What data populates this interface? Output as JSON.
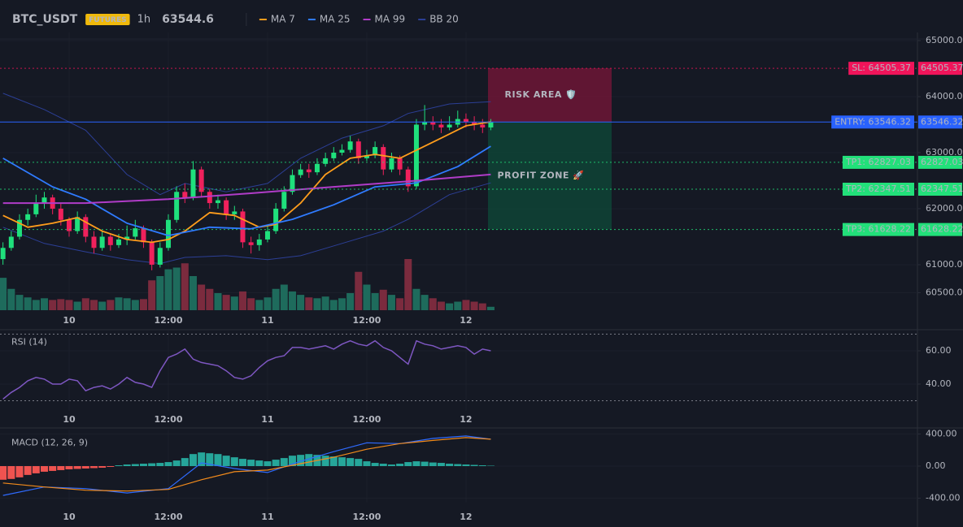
{
  "header": {
    "symbol": "BTC_USDT",
    "badge": "FUTURES",
    "interval": "1h",
    "last_price": 63544.6
  },
  "chart_data": [
    {
      "type": "candlestick",
      "xlim": [
        -0.36,
        110.6
      ],
      "xticks": [
        {
          "value": 8,
          "label": "10"
        },
        {
          "value": 20,
          "label": "12:00"
        },
        {
          "value": 32,
          "label": "11"
        },
        {
          "value": 44,
          "label": "12:00"
        },
        {
          "value": 56,
          "label": "12"
        }
      ],
      "ylim": [
        60188,
        65145
      ],
      "yticks": [
        {
          "value": 65000,
          "label": "65000.00"
        },
        {
          "value": 64000,
          "label": "64000.00"
        },
        {
          "value": 63000,
          "label": "63000.00"
        },
        {
          "value": 62000,
          "label": "62000.00"
        },
        {
          "value": 61000,
          "label": "61000.00"
        },
        {
          "value": 60500,
          "label": "60500.00"
        }
      ],
      "up_color": "#1fe07c",
      "down_color": "#f0215c",
      "volume_up_color": "#1e6b5c",
      "volume_down_color": "#7b2b3e",
      "open": [
        61100,
        61300,
        61500,
        61800,
        61900,
        62100,
        62200,
        62000,
        61800,
        61600,
        61850,
        61500,
        61300,
        61500,
        61350,
        61450,
        61500,
        61650,
        61400,
        61000,
        61300,
        61800,
        62300,
        62200,
        62700,
        62300,
        62100,
        62150,
        61900,
        61950,
        61400,
        61350,
        61450,
        61600,
        62000,
        62300,
        62600,
        62700,
        62650,
        62800,
        62900,
        63000,
        63050,
        63200,
        62900,
        62950,
        63100,
        62700,
        62900,
        62700,
        62400,
        63500,
        63550,
        63500,
        63450,
        63500,
        63600,
        63550,
        63500,
        63450
      ],
      "high": [
        61400,
        61600,
        61900,
        62000,
        62250,
        62300,
        62250,
        62100,
        61850,
        61950,
        61900,
        61600,
        61600,
        61550,
        61550,
        61700,
        61800,
        61700,
        61450,
        61400,
        61900,
        62400,
        62450,
        62850,
        62750,
        62350,
        62250,
        62200,
        62050,
        62000,
        61500,
        61550,
        61700,
        62100,
        62400,
        62700,
        62800,
        62800,
        62900,
        63000,
        63100,
        63150,
        63300,
        63250,
        63050,
        63200,
        63150,
        63000,
        62950,
        62750,
        63600,
        63850,
        63650,
        63600,
        63650,
        63750,
        63700,
        63650,
        63600,
        63600
      ],
      "low": [
        61000,
        61250,
        61450,
        61700,
        61850,
        62000,
        61900,
        61700,
        61500,
        61550,
        61400,
        61200,
        61250,
        61250,
        61300,
        61350,
        61450,
        61300,
        60900,
        60950,
        61250,
        61750,
        62100,
        62150,
        62200,
        62000,
        62000,
        61800,
        61800,
        61300,
        61200,
        61250,
        61400,
        61550,
        61950,
        62250,
        62550,
        62550,
        62600,
        62750,
        62850,
        62950,
        63000,
        62800,
        62850,
        62900,
        62600,
        62650,
        62600,
        62300,
        62350,
        63400,
        63400,
        63350,
        63400,
        63450,
        63450,
        63400,
        63350,
        63400
      ],
      "close": [
        61300,
        61500,
        61800,
        61900,
        62100,
        62200,
        62000,
        61800,
        61600,
        61850,
        61500,
        61300,
        61500,
        61350,
        61450,
        61500,
        61650,
        61400,
        61000,
        61300,
        61800,
        62300,
        62200,
        62700,
        62300,
        62100,
        62150,
        61900,
        61950,
        61400,
        61350,
        61450,
        61600,
        62000,
        62300,
        62600,
        62700,
        62650,
        62800,
        62900,
        63000,
        63050,
        63200,
        62900,
        62950,
        63100,
        62700,
        62900,
        62700,
        62400,
        63500,
        63550,
        63500,
        63450,
        63500,
        63600,
        63550,
        63500,
        63450,
        63544.6
      ],
      "volume": [
        38,
        25,
        18,
        15,
        12,
        14,
        12,
        13,
        12,
        10,
        14,
        12,
        10,
        12,
        15,
        14,
        12,
        13,
        35,
        40,
        48,
        50,
        55,
        40,
        30,
        25,
        20,
        18,
        16,
        22,
        14,
        12,
        15,
        25,
        30,
        22,
        18,
        15,
        14,
        16,
        12,
        14,
        20,
        45,
        30,
        20,
        24,
        18,
        14,
        60,
        25,
        18,
        14,
        10,
        8,
        10,
        12,
        10,
        8,
        4
      ],
      "series": [
        {
          "name": "MA 7",
          "color": "#ff9d1c",
          "x": [
            0,
            3,
            6,
            9,
            12,
            15,
            18,
            20,
            22,
            25,
            28,
            31,
            33,
            36,
            39,
            42,
            45,
            48,
            50,
            53,
            56,
            59
          ],
          "values": [
            61880,
            61670,
            61740,
            61840,
            61600,
            61450,
            61400,
            61450,
            61600,
            61930,
            61880,
            61670,
            61720,
            62100,
            62610,
            62900,
            62970,
            62900,
            63045,
            63260,
            63480,
            63550
          ]
        },
        {
          "name": "MA 25",
          "color": "#2f7bff",
          "x": [
            0,
            6,
            10,
            15,
            20,
            25,
            30,
            35,
            40,
            45,
            50,
            55,
            59
          ],
          "values": [
            62900,
            62390,
            62170,
            61740,
            61520,
            61670,
            61640,
            61810,
            62070,
            62390,
            62460,
            62750,
            63115
          ]
        },
        {
          "name": "MA 99",
          "color": "#b03cc8",
          "x": [
            0,
            10,
            20,
            30,
            40,
            50,
            59
          ],
          "values": [
            62100,
            62100,
            62170,
            62275,
            62390,
            62500,
            62610
          ]
        },
        {
          "name": "BB 20",
          "color": "#2c3f96",
          "x": [
            0,
            5,
            10,
            15,
            19,
            22,
            27,
            32,
            36,
            41,
            46,
            49,
            54,
            59
          ],
          "upper": [
            64060,
            63770,
            63400,
            62610,
            62250,
            62450,
            62300,
            62450,
            62900,
            63260,
            63480,
            63700,
            63870,
            63910
          ],
          "lower": [
            61670,
            61380,
            61230,
            61090,
            61020,
            61130,
            61160,
            61090,
            61160,
            61380,
            61600,
            61810,
            62250,
            62460
          ]
        }
      ],
      "levels": [
        {
          "label": "SL: 64505.37",
          "value": 64505.37,
          "color": "#f0145a",
          "text_color": "#ffffff",
          "style": "dotted"
        },
        {
          "label": "ENTRY: 63546.32",
          "value": 63546.32,
          "color": "#2962ff",
          "text_color": "#ffffff",
          "style": "solid"
        },
        {
          "label": "TP1: 62827.03",
          "value": 62827.03,
          "color": "#22e07a",
          "text_color": "#0b2a1a",
          "style": "dotted"
        },
        {
          "label": "TP2: 62347.51",
          "value": 62347.51,
          "color": "#22e07a",
          "text_color": "#0b2a1a",
          "style": "dotted"
        },
        {
          "label": "TP3: 61628.22",
          "value": 61628.22,
          "color": "#22e07a",
          "text_color": "#0b2a1a",
          "style": "dotted"
        }
      ],
      "zones": [
        {
          "label": "RISK AREA 🛡️",
          "range": [
            64505.37,
            63546.32
          ],
          "color": "#7a1638",
          "text_color": "#f0145a"
        },
        {
          "label": "PROFIT ZONE 🚀",
          "range": [
            63546.32,
            61628.22
          ],
          "color": "#0d4a38",
          "text_color": "#22d68a"
        }
      ]
    },
    {
      "type": "line",
      "title": "RSI (14)",
      "color": "#7e57c2",
      "xlim": [
        -0.36,
        110.6
      ],
      "xticks": [
        {
          "value": 8,
          "label": "10"
        },
        {
          "value": 20,
          "label": "12:00"
        },
        {
          "value": 32,
          "label": "11"
        },
        {
          "value": 44,
          "label": "12:00"
        },
        {
          "value": 56,
          "label": "12"
        }
      ],
      "ylim": [
        24,
        72
      ],
      "yticks": [
        {
          "value": 60,
          "label": "60.00"
        },
        {
          "value": 40,
          "label": "40.00"
        }
      ],
      "bands": [
        70,
        30
      ],
      "values": [
        31,
        35,
        38,
        42,
        44,
        43,
        40,
        40,
        43,
        42,
        36,
        38,
        39,
        37,
        40,
        44,
        41,
        40,
        38,
        48,
        56,
        58,
        61,
        55,
        53,
        52,
        51,
        48,
        44,
        43,
        45,
        50,
        54,
        56,
        57,
        62,
        62,
        61,
        62,
        63,
        61,
        64,
        66,
        64,
        63,
        66,
        62,
        60,
        56,
        52,
        66,
        64,
        63,
        61,
        62,
        63,
        62,
        58,
        61,
        60
      ]
    },
    {
      "type": "macd",
      "title": "MACD (12, 26, 9)",
      "xlim": [
        -0.36,
        110.6
      ],
      "xticks": [
        {
          "value": 8,
          "label": "10"
        },
        {
          "value": 20,
          "label": "12:00"
        },
        {
          "value": 32,
          "label": "11"
        },
        {
          "value": 44,
          "label": "12:00"
        },
        {
          "value": 56,
          "label": "12"
        }
      ],
      "ylim": [
        -450,
        450
      ],
      "yticks": [
        {
          "value": 400,
          "label": "400.00"
        },
        {
          "value": 0,
          "label": "0.00"
        },
        {
          "value": -400,
          "label": "-400.00"
        }
      ],
      "up_color": "#26a69a",
      "down_color": "#ef5350",
      "histogram": [
        -170,
        -160,
        -140,
        -110,
        -90,
        -70,
        -60,
        -50,
        -40,
        -35,
        -30,
        -25,
        -20,
        -10,
        10,
        20,
        25,
        30,
        35,
        40,
        50,
        70,
        100,
        150,
        170,
        160,
        150,
        130,
        110,
        90,
        80,
        70,
        60,
        80,
        100,
        130,
        140,
        150,
        140,
        130,
        120,
        110,
        100,
        90,
        60,
        40,
        30,
        20,
        30,
        50,
        60,
        55,
        45,
        40,
        30,
        25,
        20,
        15,
        10,
        5
      ],
      "series": [
        {
          "color": "#2f6bff",
          "x": [
            0,
            5,
            10,
            15,
            20,
            24,
            28,
            32,
            36,
            40,
            44,
            48,
            52,
            56,
            59
          ],
          "values": [
            -365,
            -260,
            -280,
            -335,
            -280,
            40,
            -30,
            -80,
            60,
            180,
            290,
            280,
            345,
            375,
            335
          ]
        },
        {
          "color": "#f28b1c",
          "x": [
            0,
            5,
            10,
            15,
            20,
            24,
            28,
            32,
            36,
            40,
            44,
            48,
            52,
            56,
            59
          ],
          "values": [
            -210,
            -260,
            -300,
            -310,
            -290,
            -170,
            -70,
            -50,
            30,
            110,
            210,
            280,
            320,
            355,
            335
          ]
        }
      ]
    }
  ]
}
